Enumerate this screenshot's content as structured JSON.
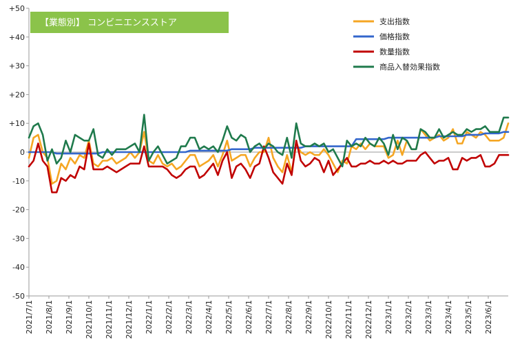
{
  "chart_data": {
    "type": "line",
    "title": "【業態別】 コンビニエンスストア",
    "title_box_color": "#8bc34a",
    "xlabel": "",
    "ylabel": "",
    "ylim": [
      -50,
      50
    ],
    "y_ticks": [
      50,
      40,
      30,
      20,
      10,
      0,
      -10,
      -20,
      -30,
      -40,
      -50
    ],
    "y_tick_labels": [
      "+50",
      "+40",
      "+30",
      "+20",
      "+10",
      "0",
      "-10",
      "-20",
      "-30",
      "-40",
      "-50"
    ],
    "x_tick_labels": [
      "2021/7/1",
      "2021/8/1",
      "2021/9/1",
      "2021/10/1",
      "2021/11/1",
      "2021/12/1",
      "2022/1/1",
      "2022/2/1",
      "2022/3/1",
      "2022/4/1",
      "2022/5/1",
      "2022/6/1",
      "2022/7/1",
      "2022/8/1",
      "2022/9/1",
      "2022/10/1",
      "2022/11/1",
      "2022/12/1",
      "2023/1/1",
      "2023/2/1",
      "2023/3/1",
      "2023/4/1",
      "2023/5/1",
      "2023/6/1"
    ],
    "grid": false,
    "legend_position": "top-right",
    "n_points": 105,
    "series": [
      {
        "name": "支出指数",
        "color": "#f5a623",
        "values": [
          -2,
          5,
          6,
          0,
          -2,
          -11,
          -10,
          -4,
          -6,
          -2,
          -4,
          -1,
          -2,
          4,
          -4,
          -5,
          -3,
          -3,
          -2,
          -4,
          -3,
          -2,
          0,
          -2,
          0,
          7,
          -3,
          -4,
          -1,
          -4,
          -5,
          -4,
          -6,
          -5,
          -3,
          -1,
          -1,
          -5,
          -4,
          -3,
          -1,
          -5,
          -1,
          4,
          -3,
          -2,
          -1,
          -1,
          -5,
          -2,
          0,
          0,
          5,
          -2,
          -5,
          -7,
          -1,
          -7,
          3,
          0,
          -1,
          0,
          -1,
          -1,
          1,
          -1,
          -4,
          -7,
          -3,
          -4,
          2,
          1,
          3,
          1,
          3,
          2,
          2,
          2,
          -2,
          -1,
          4,
          -1,
          4,
          1,
          1,
          8,
          6,
          4,
          5,
          6,
          4,
          5,
          8,
          3,
          3,
          7,
          6,
          5,
          7,
          6,
          4,
          4,
          4,
          5,
          10
        ]
      },
      {
        "name": "価格指数",
        "color": "#3366cc",
        "values": [
          0,
          0,
          0,
          0,
          0,
          0,
          -0.5,
          -0.5,
          -0.5,
          -0.5,
          -0.5,
          -0.5,
          -0.5,
          -0.5,
          -0.5,
          -0.5,
          0,
          0,
          0,
          0,
          0,
          0,
          0,
          0,
          0,
          0,
          0,
          0,
          0,
          0,
          0,
          0,
          0,
          0,
          0,
          0.5,
          0.5,
          0.5,
          0.5,
          0.5,
          0.5,
          0.5,
          0.5,
          0.5,
          1,
          1,
          1,
          1,
          1,
          1.5,
          1.5,
          1.5,
          1.5,
          1.5,
          1.5,
          1.5,
          1.5,
          1.5,
          1.5,
          1.5,
          2,
          2,
          2,
          2,
          2,
          2,
          2,
          2,
          2,
          2,
          2,
          4.5,
          4.5,
          4.5,
          4.5,
          4.5,
          4.5,
          4.5,
          5,
          5,
          5,
          5,
          5,
          5,
          5,
          5,
          5,
          5,
          5,
          5.5,
          5.5,
          5.5,
          5.5,
          5.5,
          5.5,
          6,
          6,
          6,
          6,
          6.5,
          6.5,
          6.5,
          6.5,
          7,
          7
        ]
      },
      {
        "name": "数量指数",
        "color": "#c00000",
        "values": [
          -5,
          -3,
          3,
          -3,
          -5,
          -14,
          -14,
          -9,
          -10,
          -8,
          -9,
          -5,
          -6,
          3,
          -6,
          -6,
          -6,
          -5,
          -6,
          -7,
          -6,
          -5,
          -4,
          -4,
          -4,
          2,
          -5,
          -5,
          -5,
          -5,
          -6,
          -8,
          -9,
          -8,
          -6,
          -5,
          -5,
          -9,
          -8,
          -6,
          -4,
          -8,
          -3,
          0,
          -9,
          -5,
          -4,
          -6,
          -9,
          -5,
          -4,
          2,
          -2,
          -7,
          -9,
          -11,
          -4,
          -8,
          4,
          -3,
          -5,
          -4,
          -2,
          -3,
          -7,
          -3,
          -8,
          -6,
          -4,
          -2,
          -5,
          -5,
          -4,
          -4,
          -3,
          -4,
          -4,
          -3,
          -4,
          -3,
          -4,
          -4,
          -3,
          -3,
          -3,
          -1,
          0,
          -2,
          -4,
          -3,
          -3,
          -2,
          -6,
          -6,
          -2,
          -3,
          -2,
          -2,
          -1,
          -5,
          -5,
          -4,
          -1,
          -1,
          -1
        ]
      },
      {
        "name": "商品入替効果指数",
        "color": "#1f7a4c",
        "values": [
          5,
          9,
          10,
          6,
          -3,
          1,
          -4,
          -2,
          4,
          0,
          6,
          5,
          4,
          4,
          8,
          -1,
          -2,
          1,
          -1,
          1,
          1,
          1,
          2,
          3,
          0,
          13,
          -3,
          0,
          2,
          -1,
          -4,
          -3,
          -2,
          2,
          2,
          5,
          5,
          1,
          2,
          1,
          2,
          0,
          4,
          9,
          5,
          4,
          6,
          5,
          0,
          2,
          3,
          1,
          3,
          2,
          0,
          -1,
          5,
          -2,
          10,
          3,
          2,
          2,
          3,
          2,
          3,
          0,
          1,
          -2,
          -5,
          4,
          2,
          3,
          2,
          5,
          3,
          2,
          5,
          3,
          -1,
          6,
          1,
          5,
          4,
          1,
          1,
          8,
          7,
          5,
          5,
          8,
          5,
          6,
          7,
          6,
          6,
          8,
          7,
          8,
          8,
          9,
          7,
          7,
          7,
          12,
          12
        ]
      }
    ]
  }
}
